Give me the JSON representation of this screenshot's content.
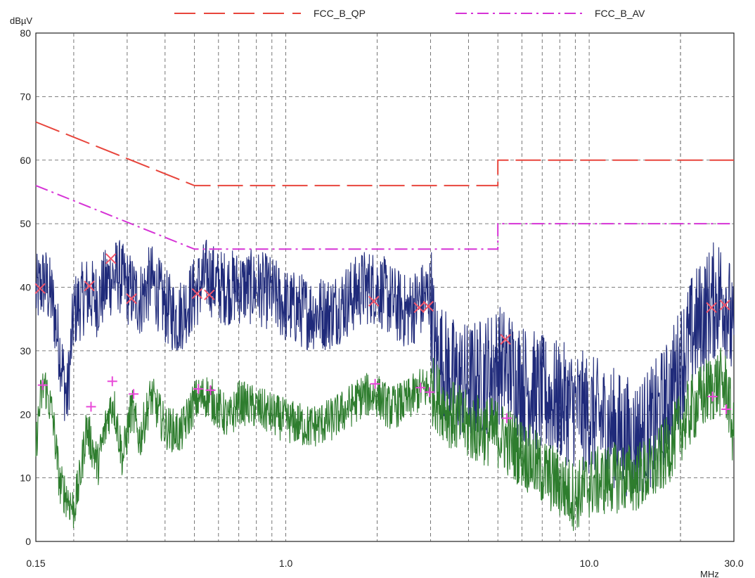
{
  "chart_data": {
    "type": "line",
    "x_scale": "log",
    "y_unit_label": "dBµV",
    "x_unit_label": "MHz",
    "xlim": [
      0.15,
      30.0
    ],
    "ylim": [
      0,
      80
    ],
    "x_tick_labels": [
      {
        "value": 0.15,
        "label": "0.15"
      },
      {
        "value": 1.0,
        "label": "1.0"
      },
      {
        "value": 10.0,
        "label": "10.0"
      },
      {
        "value": 30.0,
        "label": "30.0"
      }
    ],
    "y_ticks": [
      0,
      10,
      20,
      30,
      40,
      50,
      60,
      70,
      80
    ],
    "grid": true,
    "legend_position": "top",
    "colors": {
      "qp_limit": "#e8453c",
      "av_limit": "#d633d6",
      "peak_trace": "#1f2a7a",
      "avg_trace": "#2e7d2e",
      "qp_marker": "#f2556a",
      "av_marker": "#e84ad8",
      "grid": "#555555"
    },
    "limit_lines": [
      {
        "name": "FCC_B_QP",
        "style": "long-dash",
        "points": [
          [
            0.15,
            66
          ],
          [
            0.5,
            56
          ],
          [
            5.0,
            56
          ],
          [
            5.0,
            60
          ],
          [
            30.0,
            60
          ]
        ]
      },
      {
        "name": "FCC_B_AV",
        "style": "dash-dot",
        "points": [
          [
            0.15,
            56
          ],
          [
            0.5,
            46
          ],
          [
            5.0,
            46
          ],
          [
            5.0,
            50
          ],
          [
            30.0,
            50
          ]
        ]
      }
    ],
    "traces": [
      {
        "id": "peak_trace",
        "points": [
          [
            0.15,
            39
          ],
          [
            0.16,
            41
          ],
          [
            0.17,
            38
          ],
          [
            0.18,
            30
          ],
          [
            0.19,
            22
          ],
          [
            0.2,
            36
          ],
          [
            0.22,
            39
          ],
          [
            0.24,
            38
          ],
          [
            0.26,
            41
          ],
          [
            0.28,
            42
          ],
          [
            0.3,
            40
          ],
          [
            0.33,
            38
          ],
          [
            0.36,
            41
          ],
          [
            0.4,
            37
          ],
          [
            0.44,
            35
          ],
          [
            0.5,
            39
          ],
          [
            0.55,
            42
          ],
          [
            0.6,
            40
          ],
          [
            0.7,
            40
          ],
          [
            0.8,
            40
          ],
          [
            0.9,
            39
          ],
          [
            1.0,
            37
          ],
          [
            1.2,
            36
          ],
          [
            1.4,
            36
          ],
          [
            1.6,
            38
          ],
          [
            1.8,
            40
          ],
          [
            2.0,
            40
          ],
          [
            2.2,
            38
          ],
          [
            2.5,
            36
          ],
          [
            2.8,
            38
          ],
          [
            3.0,
            39
          ],
          [
            3.1,
            30
          ],
          [
            3.5,
            26
          ],
          [
            4.0,
            25
          ],
          [
            4.5,
            26
          ],
          [
            5.0,
            28
          ],
          [
            5.5,
            27
          ],
          [
            6.0,
            25
          ],
          [
            7.0,
            23
          ],
          [
            8.0,
            22
          ],
          [
            9.0,
            21
          ],
          [
            10.0,
            20
          ],
          [
            12.0,
            18
          ],
          [
            14.0,
            16
          ],
          [
            16.0,
            18
          ],
          [
            18.0,
            22
          ],
          [
            20.0,
            28
          ],
          [
            22.0,
            33
          ],
          [
            25.0,
            37
          ],
          [
            27.0,
            39
          ],
          [
            28.5,
            38
          ],
          [
            30.0,
            30
          ]
        ],
        "noise": 6
      },
      {
        "id": "avg_trace",
        "points": [
          [
            0.15,
            15
          ],
          [
            0.155,
            22
          ],
          [
            0.16,
            25
          ],
          [
            0.17,
            20
          ],
          [
            0.18,
            9
          ],
          [
            0.19,
            7
          ],
          [
            0.2,
            5
          ],
          [
            0.21,
            10
          ],
          [
            0.22,
            18
          ],
          [
            0.24,
            12
          ],
          [
            0.26,
            20
          ],
          [
            0.27,
            22
          ],
          [
            0.29,
            13
          ],
          [
            0.31,
            21
          ],
          [
            0.33,
            16
          ],
          [
            0.36,
            23
          ],
          [
            0.4,
            18
          ],
          [
            0.45,
            17
          ],
          [
            0.5,
            22
          ],
          [
            0.55,
            23
          ],
          [
            0.6,
            21
          ],
          [
            0.65,
            19
          ],
          [
            0.7,
            22
          ],
          [
            0.8,
            21
          ],
          [
            0.9,
            20
          ],
          [
            1.0,
            19
          ],
          [
            1.2,
            18
          ],
          [
            1.4,
            19
          ],
          [
            1.6,
            21
          ],
          [
            1.8,
            23
          ],
          [
            2.0,
            23
          ],
          [
            2.2,
            21
          ],
          [
            2.5,
            22
          ],
          [
            2.8,
            24
          ],
          [
            3.0,
            24
          ],
          [
            3.5,
            20
          ],
          [
            4.0,
            18
          ],
          [
            5.0,
            17
          ],
          [
            6.0,
            14
          ],
          [
            7.0,
            11
          ],
          [
            8.0,
            9
          ],
          [
            9.0,
            7
          ],
          [
            10.0,
            9
          ],
          [
            12.0,
            10
          ],
          [
            14.0,
            10
          ],
          [
            16.0,
            11
          ],
          [
            18.0,
            14
          ],
          [
            20.0,
            18
          ],
          [
            22.0,
            21
          ],
          [
            25.0,
            24
          ],
          [
            27.0,
            25
          ],
          [
            28.5,
            24
          ],
          [
            30.0,
            16
          ]
        ],
        "noise": 3.5
      }
    ],
    "qp_markers": [
      [
        0.155,
        39.8
      ],
      [
        0.225,
        40.2
      ],
      [
        0.265,
        44.5
      ],
      [
        0.31,
        38.2
      ],
      [
        0.51,
        39
      ],
      [
        0.56,
        38.8
      ],
      [
        1.95,
        37.8
      ],
      [
        2.75,
        36.8
      ],
      [
        2.95,
        37
      ],
      [
        5.3,
        31.8
      ],
      [
        25.3,
        36.8
      ],
      [
        28.0,
        37.2
      ]
    ],
    "av_markers": [
      [
        0.158,
        24.6
      ],
      [
        0.228,
        21.2
      ],
      [
        0.268,
        25.2
      ],
      [
        0.315,
        23.2
      ],
      [
        0.515,
        24
      ],
      [
        0.565,
        23.8
      ],
      [
        1.97,
        24.8
      ],
      [
        2.78,
        24.2
      ],
      [
        2.98,
        23.5
      ],
      [
        5.35,
        19.4
      ],
      [
        25.5,
        22.8
      ],
      [
        28.3,
        20.8
      ]
    ]
  }
}
